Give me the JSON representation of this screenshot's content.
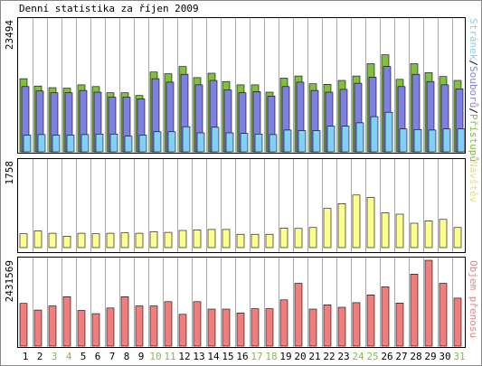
{
  "chart_data": [
    {
      "type": "bar",
      "title": "Denní statistika za říjen 2009",
      "y_max_label": "23494",
      "ylim": [
        0,
        23494
      ],
      "legend_text": [
        "Stránek",
        "/",
        "Souborů",
        "/",
        "Přístupů"
      ],
      "categories": [
        "1",
        "2",
        "3",
        "4",
        "5",
        "6",
        "7",
        "8",
        "9",
        "10",
        "11",
        "12",
        "13",
        "14",
        "15",
        "16",
        "17",
        "18",
        "19",
        "20",
        "21",
        "22",
        "23",
        "24",
        "25",
        "26",
        "27",
        "28",
        "29",
        "30",
        "31"
      ],
      "series": [
        {
          "name": "Přístupů",
          "values": [
            13100,
            11800,
            11500,
            11400,
            12000,
            11700,
            10600,
            10600,
            10100,
            14300,
            14000,
            15300,
            13300,
            14100,
            12600,
            12000,
            12000,
            10700,
            13200,
            13600,
            12200,
            12100,
            12800,
            13600,
            15800,
            17400,
            13000,
            15800,
            14200,
            13500,
            12800
          ]
        },
        {
          "name": "Souborů",
          "values": [
            11700,
            10900,
            10600,
            10600,
            11000,
            10700,
            9800,
            9800,
            9500,
            13100,
            12500,
            13900,
            12000,
            12800,
            11100,
            10600,
            10800,
            10000,
            11700,
            12500,
            11000,
            10700,
            11200,
            12300,
            13400,
            15300,
            11700,
            13900,
            12600,
            12000,
            11300
          ]
        },
        {
          "name": "Stránek",
          "values": [
            3000,
            3100,
            3000,
            3000,
            3100,
            3200,
            3200,
            2800,
            3000,
            3600,
            3600,
            4500,
            3400,
            4400,
            3400,
            3300,
            3200,
            3100,
            3900,
            3800,
            3800,
            4600,
            4600,
            5200,
            6300,
            7100,
            4100,
            4000,
            3900,
            4100,
            4100
          ]
        }
      ]
    },
    {
      "type": "bar",
      "y_max_label": "1758",
      "ylim": [
        0,
        1758
      ],
      "legend_text": "Návštěv",
      "categories": [
        "1",
        "2",
        "3",
        "4",
        "5",
        "6",
        "7",
        "8",
        "9",
        "10",
        "11",
        "12",
        "13",
        "14",
        "15",
        "16",
        "17",
        "18",
        "19",
        "20",
        "21",
        "22",
        "23",
        "24",
        "25",
        "26",
        "27",
        "28",
        "29",
        "30",
        "31"
      ],
      "series": [
        {
          "name": "Návštěv",
          "values": [
            290,
            350,
            300,
            240,
            300,
            290,
            300,
            310,
            300,
            330,
            320,
            360,
            370,
            380,
            380,
            280,
            280,
            280,
            410,
            400,
            420,
            820,
            920,
            1100,
            1050,
            730,
            700,
            510,
            560,
            590,
            420
          ]
        }
      ]
    },
    {
      "type": "bar",
      "y_max_label": "2431569",
      "ylim": [
        0,
        2431569
      ],
      "legend_text": "Objem přenosu",
      "categories": [
        "1",
        "2",
        "3",
        "4",
        "5",
        "6",
        "7",
        "8",
        "9",
        "10",
        "11",
        "12",
        "13",
        "14",
        "15",
        "16",
        "17",
        "18",
        "19",
        "20",
        "21",
        "22",
        "23",
        "24",
        "25",
        "26",
        "27",
        "28",
        "29",
        "30",
        "31"
      ],
      "series": [
        {
          "name": "Objem přenosu",
          "values": [
            1210000,
            1020000,
            1140000,
            1400000,
            1010000,
            920000,
            1080000,
            1400000,
            1140000,
            1140000,
            1260000,
            900000,
            1260000,
            1050000,
            1050000,
            940000,
            1060000,
            1060000,
            1310000,
            1780000,
            1050000,
            1170000,
            1100000,
            1230000,
            1450000,
            1680000,
            1220000,
            2040000,
            2431569,
            1780000,
            1360000
          ]
        }
      ]
    }
  ],
  "x_labels": {
    "labels": [
      "1",
      "2",
      "3",
      "4",
      "5",
      "6",
      "7",
      "8",
      "9",
      "10",
      "11",
      "12",
      "13",
      "14",
      "15",
      "16",
      "17",
      "18",
      "19",
      "20",
      "21",
      "22",
      "23",
      "24",
      "25",
      "26",
      "27",
      "28",
      "29",
      "30",
      "31"
    ],
    "weekend_days": [
      "3",
      "4",
      "10",
      "11",
      "17",
      "18",
      "24",
      "25",
      "31"
    ]
  },
  "colors": {
    "hits": "#80c040",
    "files": "#8080e0",
    "pages": "#80d0f8",
    "visits": "#ffff90",
    "kbytes": "#f08080",
    "weekend_label": "#80c040",
    "weekday_label": "#000000",
    "grid_line": "#a8a8a8",
    "frame": "#000000"
  }
}
